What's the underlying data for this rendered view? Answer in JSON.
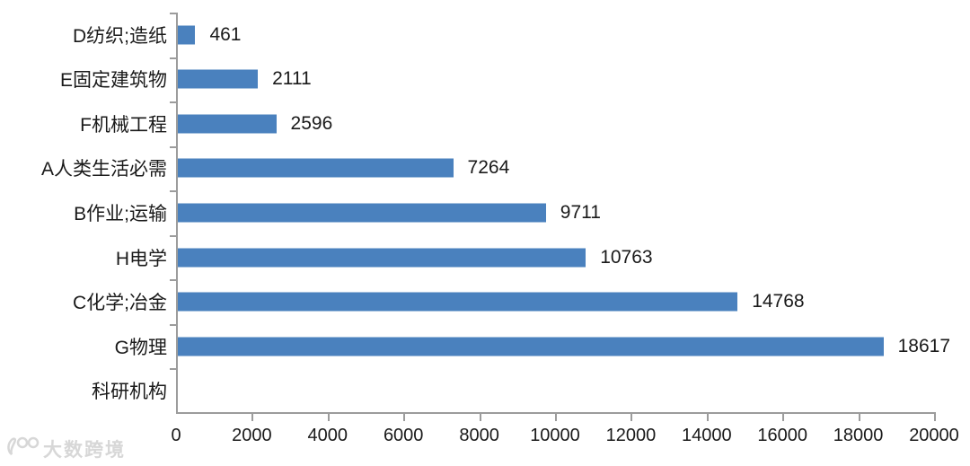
{
  "chart_data": {
    "type": "bar",
    "orientation": "horizontal",
    "title": "",
    "xlabel": "",
    "ylabel": "",
    "categories": [
      "D纺织;造纸",
      "E固定建筑物",
      "F机械工程",
      "A人类生活必需",
      "B作业;运输",
      "H电学",
      "C化学;冶金",
      "G物理",
      "科研机构"
    ],
    "values": [
      461,
      2111,
      2596,
      7264,
      9711,
      10763,
      14768,
      18617,
      null
    ],
    "data_labels": [
      "461",
      "2111",
      "2596",
      "7264",
      "9711",
      "10763",
      "14768",
      "18617",
      ""
    ],
    "xlim": [
      0,
      20000
    ],
    "x_ticks": [
      0,
      2000,
      4000,
      6000,
      8000,
      10000,
      12000,
      14000,
      16000,
      18000,
      20000
    ],
    "x_tick_labels": [
      "0",
      "2000",
      "4000",
      "6000",
      "8000",
      "10000",
      "12000",
      "14000",
      "16000",
      "18000",
      "20000"
    ],
    "grid": false,
    "legend": null,
    "bar_color": "#4A81BE",
    "axis_color": "#9C9C9C",
    "text_color": "#1A1A1A"
  },
  "watermark": {
    "logo_text": "100",
    "brand_text": "大数跨境"
  }
}
